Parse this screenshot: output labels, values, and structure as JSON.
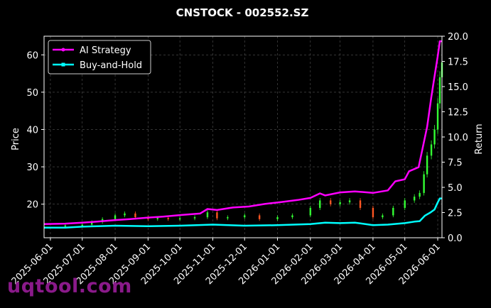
{
  "chart_data": {
    "type": "line",
    "title": "CNSTOCK - 002552.SZ",
    "ylabel_left": "Price",
    "ylabel_right": "Return",
    "left_ylim": [
      11,
      65
    ],
    "right_ylim": [
      0,
      20
    ],
    "left_yticks": [
      "20",
      "30",
      "40",
      "50",
      "60"
    ],
    "right_yticks": [
      "0.0",
      "2.5",
      "5.0",
      "7.5",
      "10.0",
      "12.5",
      "15.0",
      "17.5",
      "20.0"
    ],
    "xticks": [
      "2025-06-01",
      "2025-07-01",
      "2025-08-01",
      "2025-09-01",
      "2025-10-01",
      "2025-11-01",
      "2025-12-01",
      "2026-01-01",
      "2026-02-01",
      "2026-03-01",
      "2026-04-01",
      "2026-05-01",
      "2026-06-01"
    ],
    "grid": true,
    "legend_position": "top-left",
    "colors": {
      "strategy": "#ff00ff",
      "buyhold": "#00ffff",
      "up": "#33ff33",
      "down": "#ff5522",
      "grid": "#555555"
    },
    "series": [
      {
        "name": "AI Strategy",
        "axis": "right",
        "points": [
          [
            "2025-05-26",
            1.35
          ],
          [
            "2025-06-15",
            1.4
          ],
          [
            "2025-07-01",
            1.5
          ],
          [
            "2025-07-15",
            1.6
          ],
          [
            "2025-08-01",
            1.75
          ],
          [
            "2025-08-15",
            1.85
          ],
          [
            "2025-09-01",
            2.0
          ],
          [
            "2025-09-15",
            2.1
          ],
          [
            "2025-10-01",
            2.25
          ],
          [
            "2025-10-20",
            2.4
          ],
          [
            "2025-10-27",
            2.85
          ],
          [
            "2025-11-05",
            2.75
          ],
          [
            "2025-11-20",
            3.0
          ],
          [
            "2025-12-05",
            3.1
          ],
          [
            "2025-12-20",
            3.35
          ],
          [
            "2026-01-05",
            3.55
          ],
          [
            "2026-01-20",
            3.75
          ],
          [
            "2026-02-01",
            3.95
          ],
          [
            "2026-02-10",
            4.4
          ],
          [
            "2026-02-15",
            4.2
          ],
          [
            "2026-03-01",
            4.5
          ],
          [
            "2026-03-15",
            4.6
          ],
          [
            "2026-04-01",
            4.45
          ],
          [
            "2026-04-15",
            4.7
          ],
          [
            "2026-04-22",
            5.6
          ],
          [
            "2026-05-01",
            5.8
          ],
          [
            "2026-05-05",
            6.6
          ],
          [
            "2026-05-14",
            7.0
          ],
          [
            "2026-05-18",
            9.0
          ],
          [
            "2026-05-22",
            11.0
          ],
          [
            "2026-05-26",
            14.0
          ],
          [
            "2026-05-29",
            16.0
          ],
          [
            "2026-06-01",
            18.0
          ],
          [
            "2026-06-03",
            19.5
          ],
          [
            "2026-06-05",
            19.5
          ]
        ]
      },
      {
        "name": "Buy-and-Hold",
        "axis": "right",
        "points": [
          [
            "2025-05-26",
            1.0
          ],
          [
            "2025-06-15",
            1.0
          ],
          [
            "2025-07-01",
            1.1
          ],
          [
            "2025-07-15",
            1.15
          ],
          [
            "2025-08-01",
            1.2
          ],
          [
            "2025-09-01",
            1.15
          ],
          [
            "2025-10-01",
            1.2
          ],
          [
            "2025-11-01",
            1.3
          ],
          [
            "2025-12-01",
            1.2
          ],
          [
            "2026-01-01",
            1.25
          ],
          [
            "2026-02-01",
            1.35
          ],
          [
            "2026-02-15",
            1.5
          ],
          [
            "2026-03-01",
            1.45
          ],
          [
            "2026-03-15",
            1.5
          ],
          [
            "2026-04-01",
            1.25
          ],
          [
            "2026-04-15",
            1.3
          ],
          [
            "2026-05-01",
            1.45
          ],
          [
            "2026-05-10",
            1.6
          ],
          [
            "2026-05-15",
            1.65
          ],
          [
            "2026-05-20",
            2.2
          ],
          [
            "2026-05-25",
            2.5
          ],
          [
            "2026-05-29",
            2.8
          ],
          [
            "2026-06-01",
            3.5
          ],
          [
            "2026-06-03",
            3.9
          ],
          [
            "2026-06-05",
            3.9
          ]
        ]
      },
      {
        "name": "Price",
        "axis": "left",
        "kind": "candles",
        "points": [
          [
            "2025-06-01",
            14.0
          ],
          [
            "2025-06-15",
            14.3
          ],
          [
            "2025-07-01",
            14.5
          ],
          [
            "2025-07-10",
            15.2
          ],
          [
            "2025-07-20",
            16.0
          ],
          [
            "2025-08-01",
            17.0
          ],
          [
            "2025-08-10",
            17.5
          ],
          [
            "2025-08-20",
            16.5
          ],
          [
            "2025-09-01",
            16.0
          ],
          [
            "2025-09-10",
            16.3
          ],
          [
            "2025-09-20",
            16.0
          ],
          [
            "2025-10-01",
            16.2
          ],
          [
            "2025-10-15",
            16.5
          ],
          [
            "2025-10-27",
            17.8
          ],
          [
            "2025-11-05",
            16.2
          ],
          [
            "2025-11-15",
            16.5
          ],
          [
            "2025-12-01",
            17.0
          ],
          [
            "2025-12-15",
            16.0
          ],
          [
            "2026-01-01",
            16.5
          ],
          [
            "2026-01-15",
            17.0
          ],
          [
            "2026-02-01",
            19.0
          ],
          [
            "2026-02-10",
            21.0
          ],
          [
            "2026-02-20",
            20.0
          ],
          [
            "2026-03-01",
            20.5
          ],
          [
            "2026-03-10",
            21.0
          ],
          [
            "2026-03-20",
            19.0
          ],
          [
            "2026-04-01",
            16.5
          ],
          [
            "2026-04-10",
            17.0
          ],
          [
            "2026-04-20",
            19.0
          ],
          [
            "2026-05-01",
            21.0
          ],
          [
            "2026-05-10",
            22.0
          ],
          [
            "2026-05-15",
            23.0
          ],
          [
            "2026-05-19",
            28.0
          ],
          [
            "2026-05-22",
            33.0
          ],
          [
            "2026-05-26",
            36.0
          ],
          [
            "2026-05-29",
            40.0
          ],
          [
            "2026-06-01",
            47.0
          ],
          [
            "2026-06-03",
            54.0
          ],
          [
            "2026-06-05",
            58.0
          ]
        ]
      }
    ],
    "legend": [
      "AI Strategy",
      "Buy-and-Hold"
    ]
  },
  "watermark": "uqtool.com"
}
